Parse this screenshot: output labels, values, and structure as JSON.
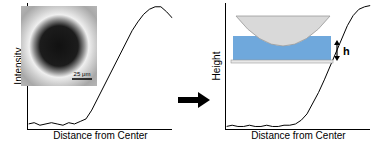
{
  "chart_data": [
    {
      "type": "line",
      "x_label": "Distance from Center",
      "y_label": "Intensity",
      "color": "#000000",
      "x": [
        0,
        4,
        8,
        12,
        16,
        20,
        24,
        28,
        32,
        36,
        40,
        44,
        48,
        52,
        56,
        60,
        64,
        68,
        72,
        76,
        80,
        84,
        88,
        92,
        96,
        100
      ],
      "values": [
        0.04,
        0.05,
        0.03,
        0.04,
        0.05,
        0.04,
        0.03,
        0.05,
        0.04,
        0.06,
        0.08,
        0.15,
        0.24,
        0.33,
        0.42,
        0.52,
        0.61,
        0.7,
        0.78,
        0.85,
        0.91,
        0.95,
        0.97,
        0.97,
        0.93,
        0.88
      ],
      "xlim": [
        0,
        100
      ],
      "ylim": [
        0,
        1
      ],
      "tick_labels": false,
      "annotations": [
        "25 μm"
      ]
    },
    {
      "type": "line",
      "x_label": "Distance from Center",
      "y_label": "Height",
      "color": "#000000",
      "x": [
        0,
        4,
        8,
        12,
        16,
        20,
        24,
        28,
        32,
        36,
        40,
        44,
        48,
        52,
        56,
        60,
        64,
        68,
        72,
        76,
        80,
        84,
        88,
        92,
        96,
        100
      ],
      "values": [
        0.02,
        0.03,
        0.02,
        0.02,
        0.03,
        0.02,
        0.02,
        0.03,
        0.02,
        0.02,
        0.03,
        0.03,
        0.04,
        0.07,
        0.12,
        0.2,
        0.29,
        0.39,
        0.5,
        0.61,
        0.72,
        0.82,
        0.9,
        0.95,
        0.97,
        0.98
      ],
      "xlim": [
        0,
        100
      ],
      "ylim": [
        0,
        1
      ],
      "tick_labels": false,
      "annotations": [
        "h"
      ]
    }
  ]
}
